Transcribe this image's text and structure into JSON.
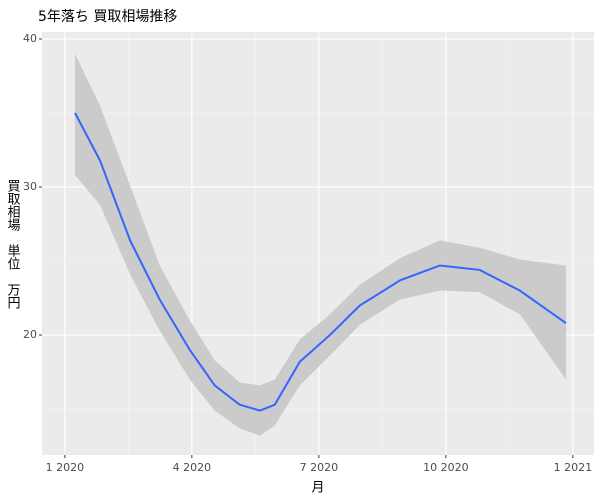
{
  "chart_data": {
    "type": "smooth-band",
    "title": "5年落ち 買取相場推移",
    "x_label": "月",
    "y_label": "買取相場　単位　万円",
    "x": [
      1.24,
      1.83,
      2.54,
      3.24,
      3.95,
      4.54,
      5.13,
      5.61,
      5.96,
      6.55,
      7.26,
      7.97,
      8.92,
      9.86,
      10.8,
      11.75,
      12.84
    ],
    "values": [
      35.0,
      31.8,
      26.4,
      22.4,
      19.0,
      16.6,
      15.3,
      14.9,
      15.3,
      18.2,
      20.0,
      22.0,
      23.7,
      24.7,
      24.4,
      23.0,
      20.8
    ],
    "upper": [
      39.0,
      35.5,
      30.1,
      24.7,
      21.0,
      18.3,
      16.8,
      16.6,
      17.0,
      19.7,
      21.4,
      23.4,
      25.2,
      26.4,
      25.9,
      25.1,
      24.7
    ],
    "lower": [
      30.8,
      28.8,
      24.1,
      20.3,
      17.0,
      14.9,
      13.7,
      13.2,
      13.9,
      16.6,
      18.6,
      20.7,
      22.4,
      23.0,
      22.9,
      21.4,
      17.0
    ],
    "color": "#3366ff",
    "band_color": "#c8c8c8",
    "xlim": [
      0.46,
      13.5
    ],
    "ylim": [
      11.9,
      40.47
    ],
    "xticks": [
      {
        "value": 1,
        "label": "1 2020"
      },
      {
        "value": 4,
        "label": "4 2020"
      },
      {
        "value": 7,
        "label": "7 2020"
      },
      {
        "value": 10,
        "label": "10 2020"
      },
      {
        "value": 13,
        "label": "1 2021"
      }
    ],
    "yticks": [
      20,
      30,
      40
    ],
    "x_minor_grid": [
      2.5,
      5.5,
      8.5,
      11.5
    ],
    "y_minor_grid": [
      15,
      25,
      35
    ],
    "grid": true
  }
}
